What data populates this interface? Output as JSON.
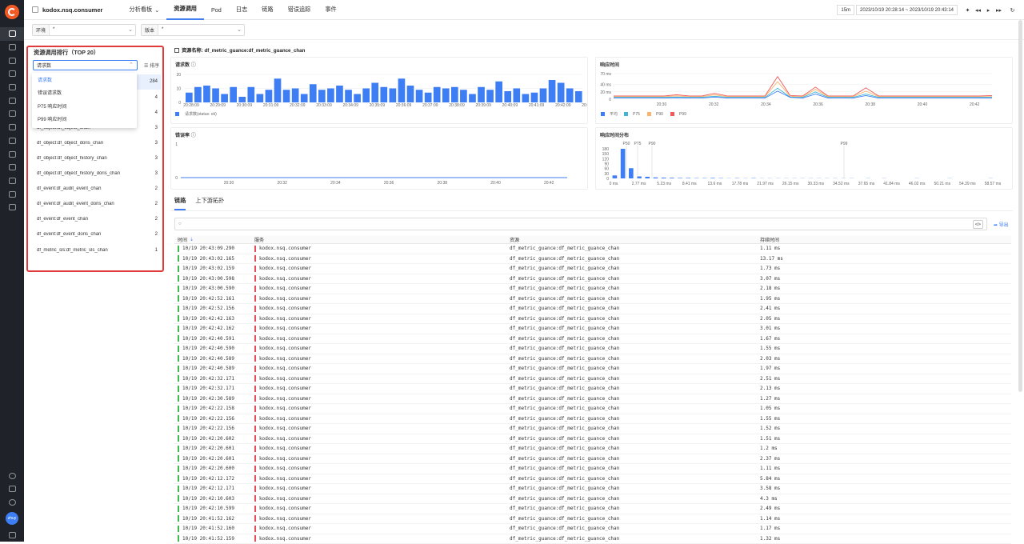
{
  "app": {
    "name": "kodox.nsq.consumer"
  },
  "nav": {
    "tabs": [
      "分析看板",
      "资源调用",
      "Pod",
      "日志",
      "链路",
      "错误追踪",
      "事件"
    ],
    "time_quick": "15m",
    "time_range": "2023/10/19 20:28:14 ~ 2023/10/19 20:43:14"
  },
  "filters": [
    {
      "label": "环境",
      "value": "*"
    },
    {
      "label": "版本",
      "value": "*"
    }
  ],
  "left": {
    "title": "资源调用排行（TOP 20）",
    "select_value": "请求数",
    "sort_label": "排序",
    "dropdown": [
      "请求数",
      "错误请求数",
      "P75 响应时间",
      "P99 响应时间"
    ],
    "rows": [
      {
        "name": "df_metric_guance:df_metric_guance_chan",
        "count": "284"
      },
      {
        "name": "df_object:df_object_history_chan",
        "count": "4"
      },
      {
        "name": "df_object:df_object_history_doris_chan",
        "count": "4"
      },
      {
        "name": "df_object:df_object_chan",
        "count": "3"
      },
      {
        "name": "df_object:df_object_doris_chan",
        "count": "3"
      },
      {
        "name": "df_object:df_object_history_chan",
        "count": "3"
      },
      {
        "name": "df_object:df_object_history_doris_chan",
        "count": "3"
      },
      {
        "name": "df_event:df_audit_event_chan",
        "count": "2"
      },
      {
        "name": "df_event:df_audit_event_doris_chan",
        "count": "2"
      },
      {
        "name": "df_event:df_event_chan",
        "count": "2"
      },
      {
        "name": "df_event:df_event_doris_chan",
        "count": "2"
      },
      {
        "name": "df_metric_sls:df_metric_sls_chan",
        "count": "1"
      }
    ]
  },
  "resource_title": "资源名称: df_metric_guance:df_metric_guance_chan",
  "charts": {
    "req_title": "请求数",
    "err_title": "错误率",
    "resp_title": "响应时间",
    "dist_title": "响应时间分布",
    "req_legend": "请求数(status: ok)",
    "resp_legend": [
      "平均",
      "P75",
      "P90",
      "P99"
    ]
  },
  "chart_data": [
    {
      "type": "bar",
      "title": "请求数",
      "ylim": [
        0,
        20
      ],
      "yticks": [
        "20",
        "10",
        "0"
      ],
      "x_labels": [
        "20:28:09",
        "20:29:09",
        "20:30:09",
        "20:31:09",
        "20:32:09",
        "20:33:09",
        "20:34:09",
        "20:35:09",
        "20:36:09",
        "20:37:09",
        "20:38:09",
        "20:39:09",
        "20:40:09",
        "20:41:09",
        "20:42:09",
        "20:43:09"
      ],
      "series": [
        {
          "name": "请求数(status: ok)",
          "values": [
            7,
            11,
            12,
            10,
            6,
            11,
            4,
            11,
            6,
            9,
            17,
            9,
            10,
            6,
            13,
            9,
            10,
            12,
            9,
            6,
            10,
            14,
            11,
            10,
            17,
            12,
            9,
            7,
            11,
            10,
            11,
            9,
            6,
            11,
            9,
            15,
            8,
            10,
            6,
            7,
            10,
            16,
            14,
            10,
            8
          ]
        }
      ]
    },
    {
      "type": "line",
      "title": "错误率",
      "yticks": [
        "1",
        "0"
      ],
      "x_labels": [
        "20:30",
        "20:32",
        "20:34",
        "20:36",
        "20:38",
        "20:40",
        "20:42"
      ],
      "series": [
        {
          "name": "错误率",
          "values": [
            0,
            0,
            0,
            0,
            0,
            0,
            0,
            0
          ]
        }
      ]
    },
    {
      "type": "line",
      "title": "响应时间",
      "ylim": [
        0,
        70
      ],
      "yticks": [
        "70 ms",
        "40 ms",
        "20 ms",
        "0"
      ],
      "x_labels": [
        "20:30",
        "20:32",
        "20:34",
        "20:36",
        "20:38",
        "20:40",
        "20:42"
      ],
      "series": [
        {
          "name": "平均",
          "values": [
            3,
            3,
            3,
            3,
            3,
            4,
            3,
            3,
            6,
            3,
            3,
            3,
            3,
            22,
            5,
            3,
            14,
            3,
            3,
            3,
            10,
            3,
            3,
            3,
            3,
            3,
            3,
            3,
            3,
            3,
            3
          ]
        },
        {
          "name": "P75",
          "values": [
            5,
            5,
            5,
            5,
            5,
            6,
            5,
            5,
            8,
            5,
            5,
            5,
            5,
            30,
            6,
            5,
            20,
            5,
            5,
            5,
            14,
            5,
            5,
            5,
            5,
            5,
            5,
            5,
            5,
            5,
            5
          ]
        },
        {
          "name": "P90",
          "values": [
            7,
            7,
            7,
            7,
            7,
            9,
            7,
            7,
            12,
            7,
            7,
            7,
            7,
            48,
            8,
            7,
            27,
            7,
            7,
            7,
            22,
            7,
            7,
            7,
            7,
            7,
            7,
            7,
            7,
            7,
            7
          ]
        },
        {
          "name": "P99",
          "values": [
            9,
            9,
            9,
            9,
            9,
            12,
            9,
            9,
            16,
            9,
            9,
            9,
            9,
            62,
            10,
            9,
            33,
            9,
            9,
            9,
            31,
            9,
            9,
            9,
            9,
            9,
            9,
            9,
            9,
            9,
            10
          ]
        }
      ]
    },
    {
      "type": "bar",
      "title": "响应时间分布",
      "yticks": [
        "180",
        "150",
        "120",
        "90",
        "60",
        "30",
        "0"
      ],
      "x_labels": [
        "0 ms",
        "2.77 ms",
        "5.23 ms",
        "8.41 ms",
        "13.6 ms",
        "17.78 ms",
        "21.97 ms",
        "26.15 ms",
        "30.33 ms",
        "34.52 ms",
        "37.65 ms",
        "41.84 ms",
        "46.02 ms",
        "50.21 ms",
        "54.39 ms",
        "58.57 ms"
      ],
      "markers": [
        "P50",
        "P75",
        "P90",
        "P99"
      ],
      "values": [
        18,
        180,
        62,
        12,
        10,
        6,
        5,
        4,
        3,
        3,
        2,
        2,
        3,
        2,
        1,
        2,
        1,
        2,
        1,
        1,
        1,
        1,
        1,
        1,
        1,
        1,
        1,
        1,
        1,
        1,
        0,
        1,
        0,
        1,
        0,
        0,
        0,
        1,
        0,
        0,
        0,
        1,
        0,
        0,
        0,
        0,
        1
      ]
    }
  ],
  "trace": {
    "tabs": [
      "链路",
      "上下游拓扑"
    ],
    "export": "导出",
    "headers": [
      "时间",
      "服务",
      "资源",
      "持续时间"
    ],
    "rows": [
      [
        "10/19 20:43:09.290",
        "kodox.nsq.consumer",
        "df_metric_guance:df_metric_guance_chan",
        "1.11 ms"
      ],
      [
        "10/19 20:43:02.165",
        "kodox.nsq.consumer",
        "df_metric_guance:df_metric_guance_chan",
        "13.17 ms"
      ],
      [
        "10/19 20:43:02.159",
        "kodox.nsq.consumer",
        "df_metric_guance:df_metric_guance_chan",
        "1.73 ms"
      ],
      [
        "10/19 20:43:00.598",
        "kodox.nsq.consumer",
        "df_metric_guance:df_metric_guance_chan",
        "3.07 ms"
      ],
      [
        "10/19 20:43:00.590",
        "kodox.nsq.consumer",
        "df_metric_guance:df_metric_guance_chan",
        "2.18 ms"
      ],
      [
        "10/19 20:42:52.161",
        "kodox.nsq.consumer",
        "df_metric_guance:df_metric_guance_chan",
        "1.95 ms"
      ],
      [
        "10/19 20:42:52.156",
        "kodox.nsq.consumer",
        "df_metric_guance:df_metric_guance_chan",
        "2.41 ms"
      ],
      [
        "10/19 20:42:42.163",
        "kodox.nsq.consumer",
        "df_metric_guance:df_metric_guance_chan",
        "2.05 ms"
      ],
      [
        "10/19 20:42:42.162",
        "kodox.nsq.consumer",
        "df_metric_guance:df_metric_guance_chan",
        "3.01 ms"
      ],
      [
        "10/19 20:42:40.591",
        "kodox.nsq.consumer",
        "df_metric_guance:df_metric_guance_chan",
        "1.67 ms"
      ],
      [
        "10/19 20:42:40.590",
        "kodox.nsq.consumer",
        "df_metric_guance:df_metric_guance_chan",
        "1.55 ms"
      ],
      [
        "10/19 20:42:40.589",
        "kodox.nsq.consumer",
        "df_metric_guance:df_metric_guance_chan",
        "2.03 ms"
      ],
      [
        "10/19 20:42:40.589",
        "kodox.nsq.consumer",
        "df_metric_guance:df_metric_guance_chan",
        "1.97 ms"
      ],
      [
        "10/19 20:42:32.171",
        "kodox.nsq.consumer",
        "df_metric_guance:df_metric_guance_chan",
        "2.51 ms"
      ],
      [
        "10/19 20:42:32.171",
        "kodox.nsq.consumer",
        "df_metric_guance:df_metric_guance_chan",
        "2.13 ms"
      ],
      [
        "10/19 20:42:30.589",
        "kodox.nsq.consumer",
        "df_metric_guance:df_metric_guance_chan",
        "1.27 ms"
      ],
      [
        "10/19 20:42:22.158",
        "kodox.nsq.consumer",
        "df_metric_guance:df_metric_guance_chan",
        "1.05 ms"
      ],
      [
        "10/19 20:42:22.156",
        "kodox.nsq.consumer",
        "df_metric_guance:df_metric_guance_chan",
        "1.55 ms"
      ],
      [
        "10/19 20:42:22.156",
        "kodox.nsq.consumer",
        "df_metric_guance:df_metric_guance_chan",
        "1.52 ms"
      ],
      [
        "10/19 20:42:20.602",
        "kodox.nsq.consumer",
        "df_metric_guance:df_metric_guance_chan",
        "1.51 ms"
      ],
      [
        "10/19 20:42:20.601",
        "kodox.nsq.consumer",
        "df_metric_guance:df_metric_guance_chan",
        "1.2 ms"
      ],
      [
        "10/19 20:42:20.601",
        "kodox.nsq.consumer",
        "df_metric_guance:df_metric_guance_chan",
        "2.37 ms"
      ],
      [
        "10/19 20:42:20.600",
        "kodox.nsq.consumer",
        "df_metric_guance:df_metric_guance_chan",
        "1.11 ms"
      ],
      [
        "10/19 20:42:12.172",
        "kodox.nsq.consumer",
        "df_metric_guance:df_metric_guance_chan",
        "5.84 ms"
      ],
      [
        "10/19 20:42:12.171",
        "kodox.nsq.consumer",
        "df_metric_guance:df_metric_guance_chan",
        "3.58 ms"
      ],
      [
        "10/19 20:42:10.603",
        "kodox.nsq.consumer",
        "df_metric_guance:df_metric_guance_chan",
        "4.3 ms"
      ],
      [
        "10/19 20:42:10.599",
        "kodox.nsq.consumer",
        "df_metric_guance:df_metric_guance_chan",
        "2.49 ms"
      ],
      [
        "10/19 20:41:52.162",
        "kodox.nsq.consumer",
        "df_metric_guance:df_metric_guance_chan",
        "1.14 ms"
      ],
      [
        "10/19 20:41:52.160",
        "kodox.nsq.consumer",
        "df_metric_guance:df_metric_guance_chan",
        "1.17 ms"
      ],
      [
        "10/19 20:41:52.159",
        "kodox.nsq.consumer",
        "df_metric_guance:df_metric_guance_chan",
        "1.32 ms"
      ]
    ]
  },
  "user": {
    "avatar": "zhuy"
  },
  "colors": {
    "accent": "#3d7ef4",
    "avg": "#3d7ef4",
    "p75": "#3fb4d6",
    "p90": "#f7b46a",
    "p99": "#f15a5a",
    "green": "#3fb950",
    "red": "#e64c5a"
  }
}
